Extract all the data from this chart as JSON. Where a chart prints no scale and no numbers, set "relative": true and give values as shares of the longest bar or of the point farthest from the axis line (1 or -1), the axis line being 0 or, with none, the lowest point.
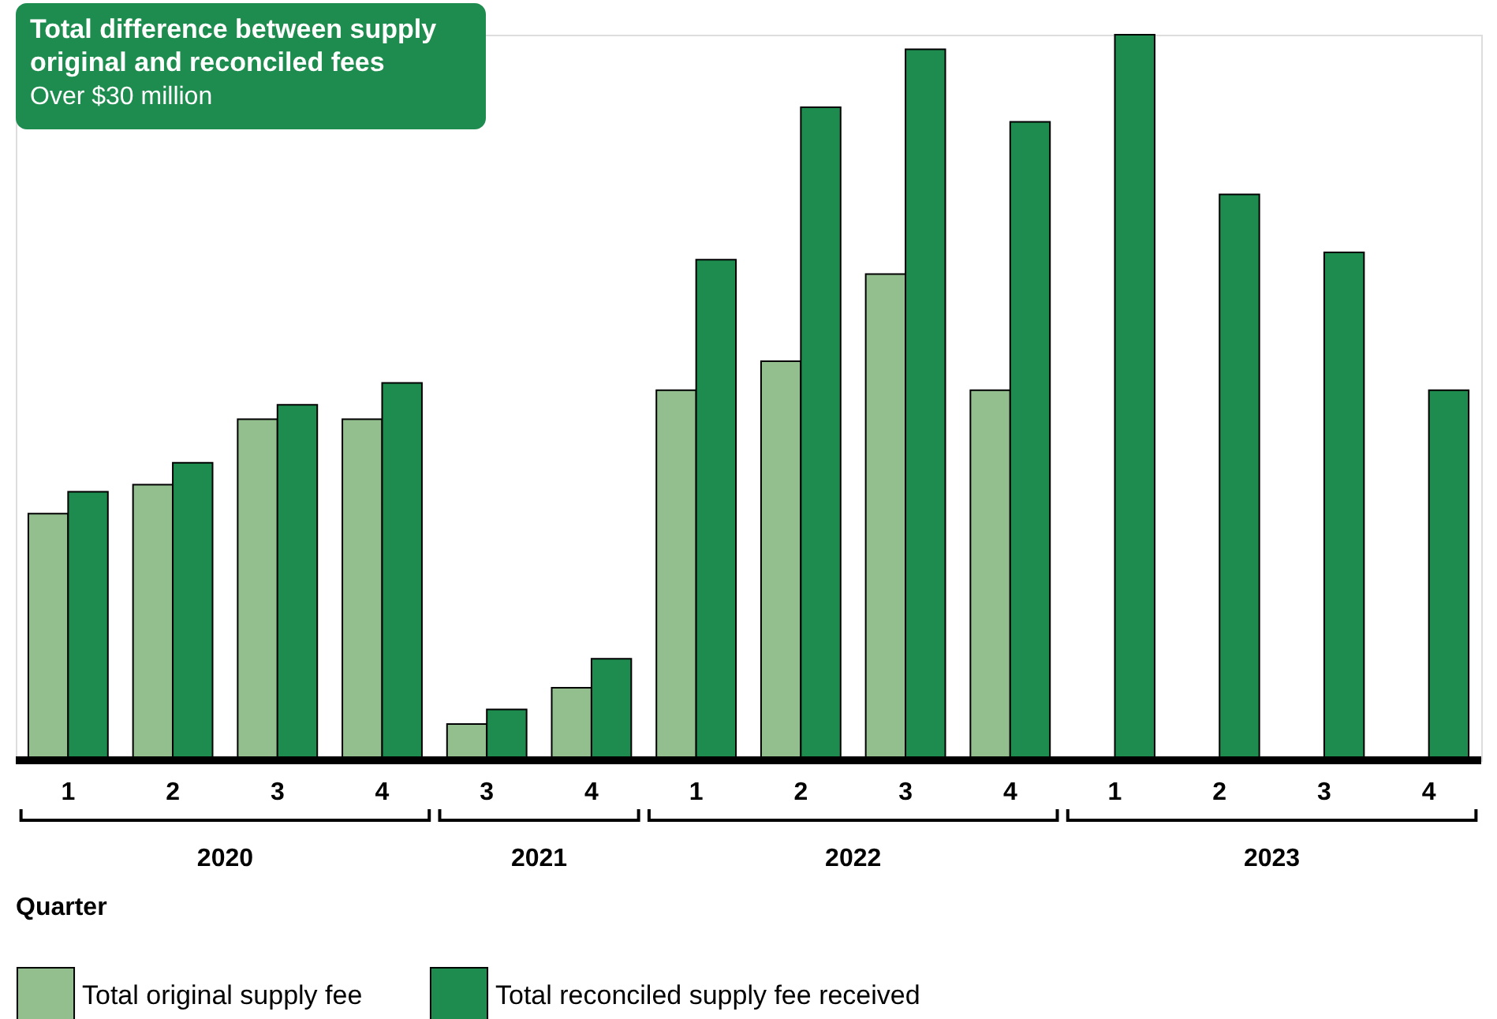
{
  "chart_data": {
    "type": "bar",
    "title": "Total difference between supply original and reconciled fees",
    "subtitle": "Over $30 million",
    "xlabel": "Quarter",
    "categories": [
      "1",
      "2",
      "3",
      "4",
      "3",
      "4",
      "1",
      "2",
      "3",
      "4",
      "1",
      "2",
      "3",
      "4"
    ],
    "annotations": [
      "2020",
      "2021",
      "2022",
      "2023"
    ],
    "relative": true,
    "legend": "bottom",
    "series": [
      {
        "name": "Total original supply fee",
        "color": "#93bf8f",
        "values": [
          0.34,
          0.38,
          0.47,
          0.47,
          0.05,
          0.1,
          0.51,
          0.55,
          0.67,
          0.51,
          null,
          null,
          null,
          null
        ]
      },
      {
        "name": "Total reconciled supply fee received",
        "color": "#1e8c4e",
        "values": [
          0.37,
          0.41,
          0.49,
          0.52,
          0.07,
          0.14,
          0.69,
          0.9,
          0.98,
          0.88,
          1,
          0.78,
          0.7,
          0.51
        ]
      }
    ]
  }
}
